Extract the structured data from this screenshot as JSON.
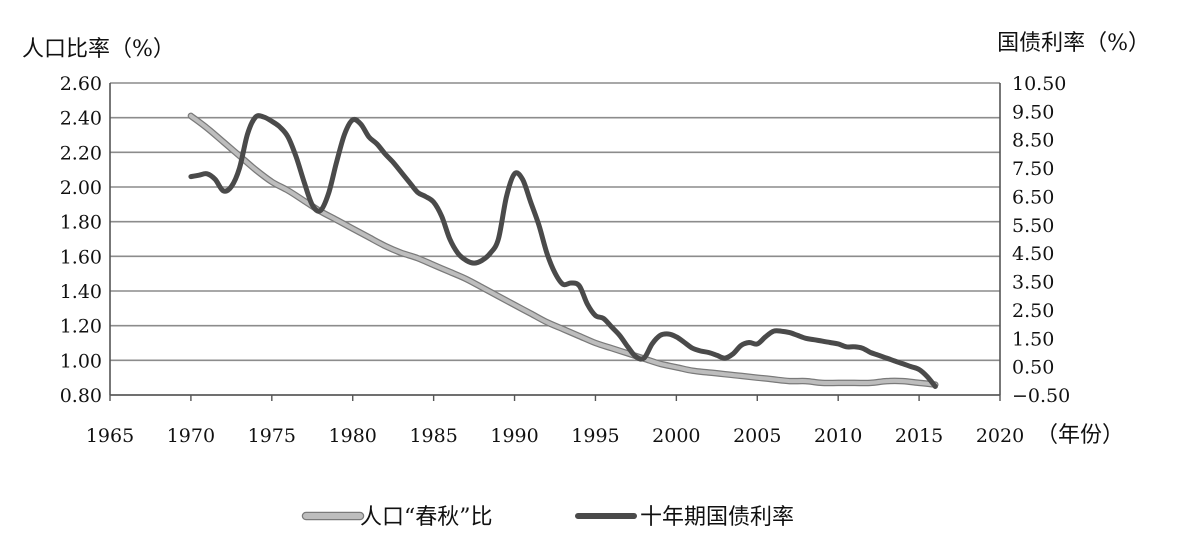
{
  "chart_data": {
    "type": "line",
    "y_left_title": "人口比率（%）",
    "y_right_title": "国债利率（%）",
    "x_unit_label": "（年份）",
    "x_ticks": [
      "1965",
      "1970",
      "1975",
      "1980",
      "1985",
      "1990",
      "1995",
      "2000",
      "2005",
      "2010",
      "2015",
      "2020"
    ],
    "y_left_ticks": [
      "0.80",
      "1.00",
      "1.20",
      "1.40",
      "1.60",
      "1.80",
      "2.00",
      "2.20",
      "2.40",
      "2.60"
    ],
    "y_right_ticks": [
      "−0.50",
      "0.50",
      "1.50",
      "2.50",
      "3.50",
      "4.50",
      "5.50",
      "6.50",
      "7.50",
      "8.50",
      "9.50",
      "10.50"
    ],
    "xlim": [
      1965,
      2020
    ],
    "ylim_left": [
      0.8,
      2.6
    ],
    "ylim_right": [
      -0.5,
      10.5
    ],
    "grid": true,
    "legend_position": "bottom",
    "series": [
      {
        "name": "人口“春秋”比",
        "axis": "left",
        "color": "#bdbdbd",
        "x": [
          1970,
          1971,
          1972,
          1973,
          1974,
          1975,
          1976,
          1977,
          1978,
          1979,
          1980,
          1981,
          1982,
          1983,
          1984,
          1985,
          1986,
          1987,
          1988,
          1989,
          1990,
          1991,
          1992,
          1993,
          1994,
          1995,
          1996,
          1997,
          1998,
          1999,
          2000,
          2001,
          2002,
          2003,
          2004,
          2005,
          2006,
          2007,
          2008,
          2009,
          2010,
          2011,
          2012,
          2013,
          2014,
          2015,
          2016
        ],
        "y": [
          2.41,
          2.34,
          2.26,
          2.18,
          2.1,
          2.03,
          1.98,
          1.92,
          1.86,
          1.81,
          1.76,
          1.71,
          1.66,
          1.62,
          1.59,
          1.55,
          1.51,
          1.47,
          1.42,
          1.37,
          1.32,
          1.27,
          1.22,
          1.18,
          1.14,
          1.1,
          1.07,
          1.04,
          1.01,
          0.98,
          0.96,
          0.94,
          0.93,
          0.92,
          0.91,
          0.9,
          0.89,
          0.88,
          0.88,
          0.87,
          0.87,
          0.87,
          0.87,
          0.88,
          0.88,
          0.87,
          0.86
        ]
      },
      {
        "name": "十年期国债利率",
        "axis": "right",
        "color": "#4a4a4a",
        "x": [
          1970,
          1970.5,
          1971,
          1971.5,
          1972,
          1972.5,
          1973,
          1973.5,
          1974,
          1974.5,
          1975,
          1975.5,
          1976,
          1976.5,
          1977,
          1977.5,
          1978,
          1978.5,
          1979,
          1979.5,
          1980,
          1980.5,
          1981,
          1981.5,
          1982,
          1982.5,
          1983,
          1983.5,
          1984,
          1984.5,
          1985,
          1985.5,
          1986,
          1986.5,
          1987,
          1987.5,
          1988,
          1988.5,
          1989,
          1989.5,
          1990,
          1990.5,
          1991,
          1991.5,
          1992,
          1992.5,
          1993,
          1993.5,
          1994,
          1994.5,
          1995,
          1995.5,
          1996,
          1996.5,
          1997,
          1997.5,
          1998,
          1998.5,
          1999,
          1999.5,
          2000,
          2000.5,
          2001,
          2001.5,
          2002,
          2002.5,
          2003,
          2003.5,
          2004,
          2004.5,
          2005,
          2005.5,
          2006,
          2006.5,
          2007,
          2007.5,
          2008,
          2008.5,
          2009,
          2009.5,
          2010,
          2010.5,
          2011,
          2011.5,
          2012,
          2012.5,
          2013,
          2013.5,
          2014,
          2014.5,
          2015,
          2015.5,
          2016
        ],
        "y": [
          7.2,
          7.25,
          7.3,
          7.1,
          6.7,
          6.85,
          7.5,
          8.7,
          9.3,
          9.3,
          9.15,
          8.95,
          8.6,
          7.9,
          7.0,
          6.2,
          6.0,
          6.6,
          7.7,
          8.7,
          9.2,
          9.05,
          8.6,
          8.35,
          8.0,
          7.7,
          7.35,
          7.0,
          6.65,
          6.5,
          6.3,
          5.8,
          5.0,
          4.5,
          4.25,
          4.15,
          4.25,
          4.5,
          5.0,
          6.5,
          7.3,
          7.1,
          6.3,
          5.5,
          4.5,
          3.8,
          3.4,
          3.45,
          3.35,
          2.7,
          2.3,
          2.2,
          1.9,
          1.6,
          1.2,
          0.85,
          0.8,
          1.3,
          1.6,
          1.65,
          1.55,
          1.35,
          1.15,
          1.05,
          1.0,
          0.9,
          0.8,
          0.95,
          1.25,
          1.35,
          1.3,
          1.55,
          1.75,
          1.75,
          1.7,
          1.6,
          1.5,
          1.45,
          1.4,
          1.35,
          1.3,
          1.2,
          1.2,
          1.15,
          1.0,
          0.9,
          0.8,
          0.7,
          0.6,
          0.5,
          0.4,
          0.15,
          -0.2
        ]
      }
    ]
  }
}
